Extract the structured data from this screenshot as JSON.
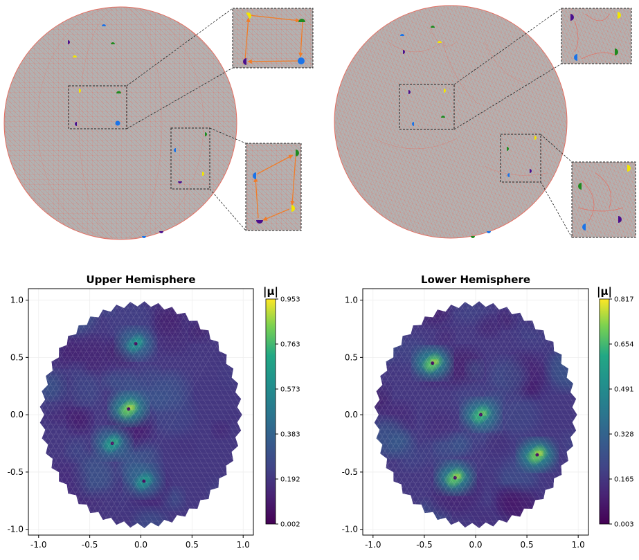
{
  "colors": {
    "mesh_fill": "#b2b2b2",
    "mesh_line": "#e46f62",
    "arrow": "#f07d2a",
    "marker_blue": "#1a73e8",
    "marker_green": "#1f8a1f",
    "marker_yellow": "#f2e600",
    "marker_purple": "#4b0f8c"
  },
  "chart_data": [
    {
      "type": "heatmap",
      "title": "Upper Hemisphere",
      "colorbar_label": "|μ|",
      "colorbar_range": [
        0.002,
        0.953
      ],
      "colorbar_ticks": [
        "0.953",
        "0.763",
        "0.573",
        "0.383",
        "0.192",
        "0.002"
      ],
      "xlim": [
        -1.1,
        1.1
      ],
      "ylim": [
        -1.05,
        1.1
      ],
      "xticks": [
        "-1.0",
        "-0.5",
        "0.0",
        "0.5",
        "1.0"
      ],
      "yticks": [
        "1.0",
        "0.5",
        "0.0",
        "-0.5",
        "-1.0"
      ],
      "hotspots": [
        {
          "x": -0.05,
          "y": 0.62,
          "value": 0.7
        },
        {
          "x": -0.12,
          "y": 0.05,
          "value": 0.95
        },
        {
          "x": -0.28,
          "y": -0.25,
          "value": 0.75
        },
        {
          "x": 0.03,
          "y": -0.58,
          "value": 0.7
        }
      ]
    },
    {
      "type": "heatmap",
      "title": "Lower Hemisphere",
      "colorbar_label": "|μ|",
      "colorbar_range": [
        0.003,
        0.817
      ],
      "colorbar_ticks": [
        "0.817",
        "0.654",
        "0.491",
        "0.328",
        "0.165",
        "0.003"
      ],
      "xlim": [
        -1.1,
        1.1
      ],
      "ylim": [
        -1.05,
        1.1
      ],
      "xticks": [
        "-1.0",
        "-0.5",
        "0.0",
        "0.5",
        "1.0"
      ],
      "yticks": [
        "1.0",
        "0.5",
        "0.0",
        "-0.5",
        "-1.0"
      ],
      "hotspots": [
        {
          "x": -0.42,
          "y": 0.45,
          "value": 0.8
        },
        {
          "x": 0.05,
          "y": 0.0,
          "value": 0.75
        },
        {
          "x": -0.2,
          "y": -0.55,
          "value": 0.8
        },
        {
          "x": 0.6,
          "y": -0.35,
          "value": 0.82
        }
      ]
    }
  ]
}
